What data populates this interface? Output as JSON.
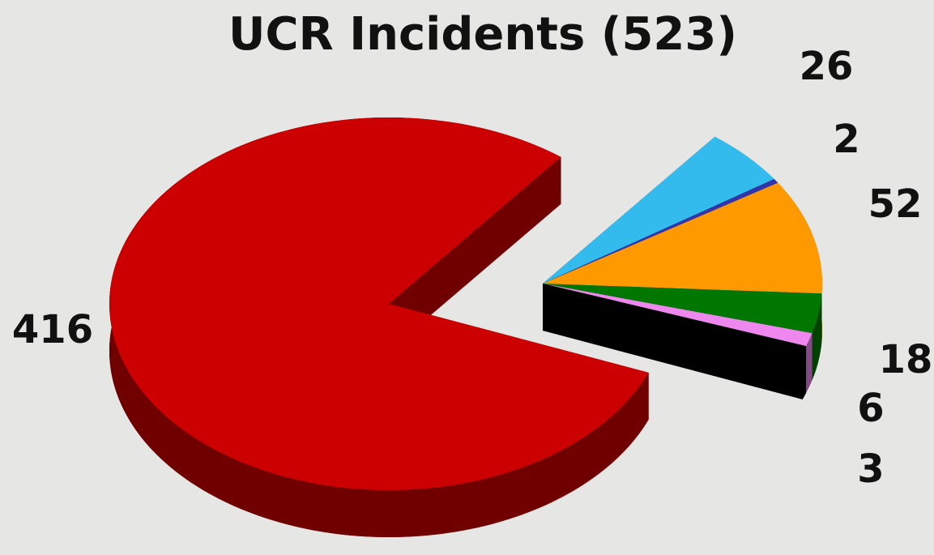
{
  "chart_data": {
    "type": "pie",
    "title": "UCR Incidents (523)",
    "values": [
      416,
      26,
      2,
      52,
      18,
      6,
      3
    ],
    "colors": [
      "#cc0000",
      "#33bbee",
      "#3333aa",
      "#ff9900",
      "#007700",
      "#ee88ee",
      "#000000"
    ]
  }
}
